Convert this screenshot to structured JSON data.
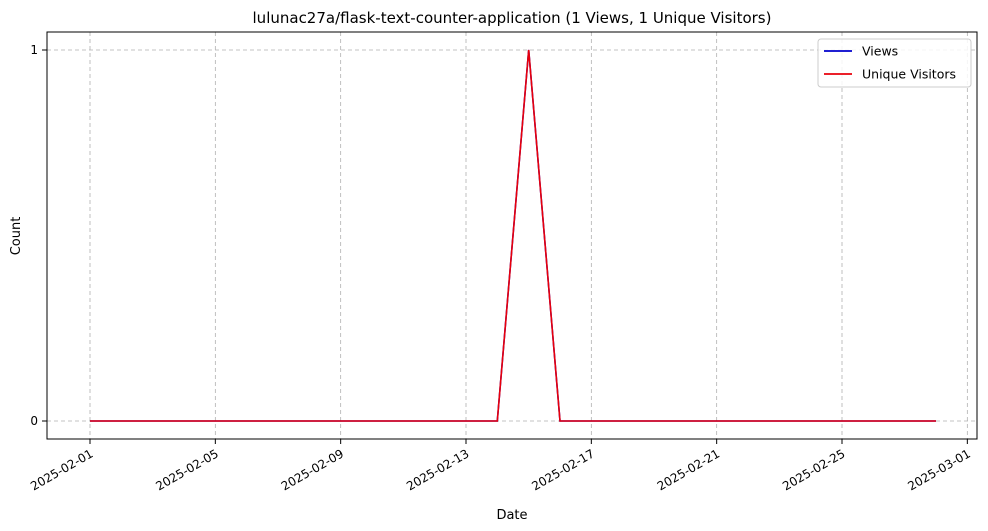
{
  "chart_data": {
    "type": "line",
    "title": "lulunac27a/flask-text-counter-application (1 Views, 1 Unique Visitors)",
    "xlabel": "Date",
    "ylabel": "Count",
    "x": [
      "2025-02-01",
      "2025-02-02",
      "2025-02-03",
      "2025-02-04",
      "2025-02-05",
      "2025-02-06",
      "2025-02-07",
      "2025-02-08",
      "2025-02-09",
      "2025-02-10",
      "2025-02-11",
      "2025-02-12",
      "2025-02-13",
      "2025-02-14",
      "2025-02-15",
      "2025-02-16",
      "2025-02-17",
      "2025-02-18",
      "2025-02-19",
      "2025-02-20",
      "2025-02-21",
      "2025-02-22",
      "2025-02-23",
      "2025-02-24",
      "2025-02-25",
      "2025-02-26",
      "2025-02-27",
      "2025-02-28"
    ],
    "series": [
      {
        "name": "Views",
        "color": "#0000cc",
        "values": [
          0,
          0,
          0,
          0,
          0,
          0,
          0,
          0,
          0,
          0,
          0,
          0,
          0,
          0,
          1,
          0,
          0,
          0,
          0,
          0,
          0,
          0,
          0,
          0,
          0,
          0,
          0,
          0
        ]
      },
      {
        "name": "Unique Visitors",
        "color": "#e8000b",
        "values": [
          0,
          0,
          0,
          0,
          0,
          0,
          0,
          0,
          0,
          0,
          0,
          0,
          0,
          0,
          1,
          0,
          0,
          0,
          0,
          0,
          0,
          0,
          0,
          0,
          0,
          0,
          0,
          0
        ]
      }
    ],
    "xticks": [
      "2025-02-01",
      "2025-02-05",
      "2025-02-09",
      "2025-02-13",
      "2025-02-17",
      "2025-02-21",
      "2025-02-25",
      "2025-03-01"
    ],
    "yticks": [
      "0",
      "1"
    ],
    "ylim": [
      0,
      1
    ],
    "grid": true,
    "legend_position": "top-right"
  }
}
